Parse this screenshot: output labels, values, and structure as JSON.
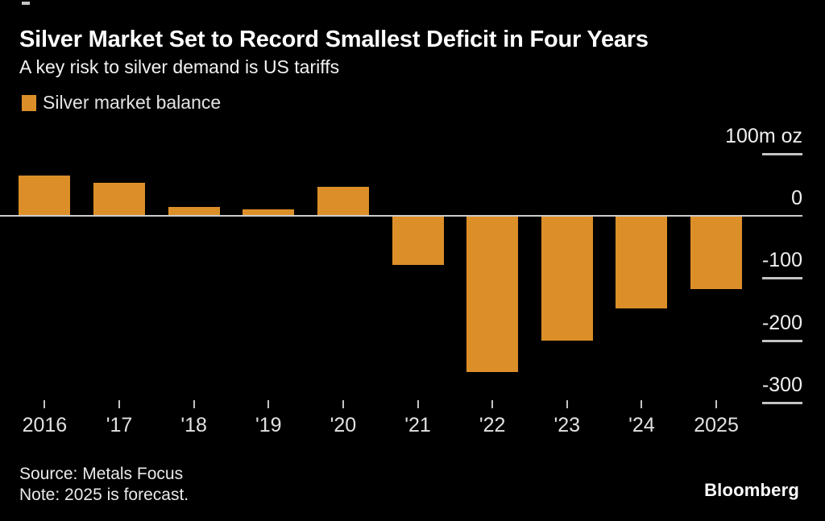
{
  "chart_data": {
    "type": "bar",
    "title": "Silver Market Set to Record Smallest Deficit in Four Years",
    "subtitle": "A key risk to silver demand is US tariffs",
    "legend": {
      "label": "Silver market balance",
      "position": "top-left"
    },
    "unit_label": "100m oz",
    "categories": [
      "2016",
      "'17",
      "'18",
      "'19",
      "'20",
      "'21",
      "'22",
      "'23",
      "'24",
      "2025"
    ],
    "values": [
      65,
      53,
      14,
      10,
      46,
      -79,
      -250,
      -200,
      -148,
      -117
    ],
    "xlabel": "",
    "ylabel": "100m oz",
    "ylim": [
      -320,
      110
    ],
    "y_axis": {
      "side": "right",
      "ticks": [
        {
          "value": 100,
          "label": "100m oz"
        },
        {
          "value": 0,
          "label": "0"
        },
        {
          "value": -100,
          "label": "-100"
        },
        {
          "value": -200,
          "label": "-200"
        },
        {
          "value": -300,
          "label": "-300"
        }
      ]
    },
    "grid": false,
    "colors": {
      "bar": "#dc8f29",
      "axis": "#cccccc",
      "tick": "#c4c4c4",
      "background": "#000000",
      "title": "#ffffff"
    }
  },
  "footer": {
    "source": "Source: Metals Focus",
    "note": "Note: 2025 is forecast.",
    "brand": "Bloomberg"
  }
}
